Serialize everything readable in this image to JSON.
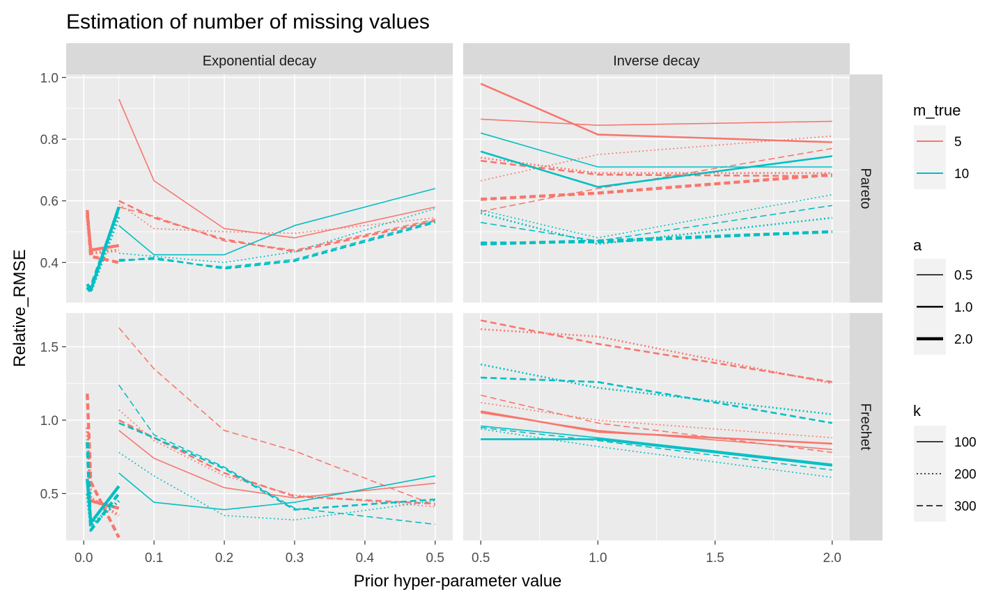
{
  "chart_data": {
    "type": "line",
    "title": "Estimation of number of missing values",
    "xlabel": "Prior hyper-parameter value",
    "ylabel": "Relative_RMSE",
    "columns": [
      {
        "label": "Exponential decay",
        "xlim": [
          -0.025,
          0.525
        ],
        "ticks": [
          0.0,
          0.1,
          0.2,
          0.3,
          0.4,
          0.5
        ],
        "tick_labels": [
          "0.0",
          "0.1",
          "0.2",
          "0.3",
          "0.4",
          "0.5"
        ]
      },
      {
        "label": "Inverse decay",
        "xlim": [
          0.425,
          2.075
        ],
        "ticks": [
          0.5,
          1.0,
          1.5,
          2.0
        ],
        "tick_labels": [
          "0.5",
          "1.0",
          "1.5",
          "2.0"
        ]
      }
    ],
    "rows": [
      {
        "label": "Pareto",
        "ylim": [
          0.27,
          1.01
        ],
        "ticks": [
          0.4,
          0.6,
          0.8,
          1.0
        ],
        "tick_labels": [
          "0.4",
          "0.6",
          "0.8",
          "1.0"
        ]
      },
      {
        "label": "Frechet",
        "ylim": [
          0.18,
          1.73
        ],
        "ticks": [
          0.5,
          1.0,
          1.5
        ],
        "tick_labels": [
          "0.5",
          "1.0",
          "1.5"
        ]
      }
    ],
    "legends": [
      {
        "title": "m_true",
        "kind": "color",
        "entries": [
          {
            "label": "5",
            "color": "#F8766D"
          },
          {
            "label": "10",
            "color": "#00BFC4"
          }
        ]
      },
      {
        "title": "a",
        "kind": "linewidth",
        "entries": [
          {
            "label": "0.5",
            "width": 1.6
          },
          {
            "label": "1.0",
            "width": 2.6
          },
          {
            "label": "2.0",
            "width": 4.4
          }
        ]
      },
      {
        "title": "k",
        "kind": "linetype",
        "entries": [
          {
            "label": "100",
            "dash": "solid"
          },
          {
            "label": "200",
            "dash": "dotted"
          },
          {
            "label": "300",
            "dash": "dashed"
          }
        ]
      }
    ],
    "series": [
      {
        "panel": [
          0,
          0
        ],
        "m_true": "5",
        "a": "0.5",
        "k": "100",
        "x": [
          0.05,
          0.1,
          0.2,
          0.3,
          0.5
        ],
        "y": [
          0.93,
          0.665,
          0.51,
          0.48,
          0.58
        ]
      },
      {
        "panel": [
          0,
          0
        ],
        "m_true": "5",
        "a": "0.5",
        "k": "200",
        "x": [
          0.05,
          0.1,
          0.2,
          0.3,
          0.5
        ],
        "y": [
          0.59,
          0.51,
          0.5,
          0.495,
          0.545
        ]
      },
      {
        "panel": [
          0,
          0
        ],
        "m_true": "5",
        "a": "0.5",
        "k": "300",
        "x": [
          0.05,
          0.1,
          0.2,
          0.3,
          0.5
        ],
        "y": [
          0.58,
          0.55,
          0.47,
          0.44,
          0.54
        ]
      },
      {
        "panel": [
          0,
          0
        ],
        "m_true": "5",
        "a": "1.0",
        "k": "300",
        "x": [
          0.05,
          0.1,
          0.2,
          0.3,
          0.5
        ],
        "y": [
          0.6,
          0.545,
          0.475,
          0.435,
          0.535
        ]
      },
      {
        "panel": [
          0,
          0
        ],
        "m_true": "10",
        "a": "0.5",
        "k": "100",
        "x": [
          0.05,
          0.1,
          0.2,
          0.3,
          0.5
        ],
        "y": [
          0.52,
          0.425,
          0.425,
          0.52,
          0.64
        ]
      },
      {
        "panel": [
          0,
          0
        ],
        "m_true": "10",
        "a": "0.5",
        "k": "200",
        "x": [
          0.05,
          0.1,
          0.2,
          0.3,
          0.5
        ],
        "y": [
          0.43,
          0.42,
          0.4,
          0.435,
          0.575
        ]
      },
      {
        "panel": [
          0,
          0
        ],
        "m_true": "10",
        "a": "0.5",
        "k": "300",
        "x": [
          0.05,
          0.1,
          0.2,
          0.3,
          0.5
        ],
        "y": [
          0.41,
          0.41,
          0.385,
          0.41,
          0.535
        ]
      },
      {
        "panel": [
          0,
          0
        ],
        "m_true": "10",
        "a": "1.0",
        "k": "300",
        "x": [
          0.05,
          0.1,
          0.2,
          0.3,
          0.5
        ],
        "y": [
          0.405,
          0.415,
          0.38,
          0.405,
          0.53
        ]
      },
      {
        "panel": [
          0,
          0
        ],
        "m_true": "5",
        "a": "2.0",
        "k": "100",
        "x": [
          0.005,
          0.01,
          0.05
        ],
        "y": [
          0.56,
          0.44,
          0.455
        ]
      },
      {
        "panel": [
          0,
          0
        ],
        "m_true": "5",
        "a": "2.0",
        "k": "200",
        "x": [
          0.005,
          0.01,
          0.05
        ],
        "y": [
          0.55,
          0.43,
          0.44
        ]
      },
      {
        "panel": [
          0,
          0
        ],
        "m_true": "5",
        "a": "2.0",
        "k": "300",
        "x": [
          0.005,
          0.01,
          0.05
        ],
        "y": [
          0.57,
          0.42,
          0.4
        ]
      },
      {
        "panel": [
          0,
          0
        ],
        "m_true": "10",
        "a": "2.0",
        "k": "100",
        "x": [
          0.005,
          0.01,
          0.05
        ],
        "y": [
          0.33,
          0.31,
          0.58
        ]
      },
      {
        "panel": [
          0,
          0
        ],
        "m_true": "10",
        "a": "2.0",
        "k": "200",
        "x": [
          0.005,
          0.01,
          0.05
        ],
        "y": [
          0.32,
          0.305,
          0.55
        ]
      },
      {
        "panel": [
          0,
          0
        ],
        "m_true": "10",
        "a": "2.0",
        "k": "300",
        "x": [
          0.005,
          0.01,
          0.05
        ],
        "y": [
          0.31,
          0.32,
          0.575
        ]
      },
      {
        "panel": [
          0,
          1
        ],
        "m_true": "5",
        "a": "0.5",
        "k": "100",
        "x": [
          0.5,
          1.0,
          2.0
        ],
        "y": [
          0.865,
          0.845,
          0.858
        ]
      },
      {
        "panel": [
          0,
          1
        ],
        "m_true": "5",
        "a": "1.0",
        "k": "100",
        "x": [
          0.5,
          1.0,
          2.0
        ],
        "y": [
          0.98,
          0.815,
          0.79
        ]
      },
      {
        "panel": [
          0,
          1
        ],
        "m_true": "5",
        "a": "0.5",
        "k": "200",
        "x": [
          0.5,
          1.0,
          2.0
        ],
        "y": [
          0.665,
          0.75,
          0.81
        ]
      },
      {
        "panel": [
          0,
          1
        ],
        "m_true": "5",
        "a": "0.5",
        "k": "300",
        "x": [
          0.5,
          1.0,
          2.0
        ],
        "y": [
          0.565,
          0.64,
          0.77
        ]
      },
      {
        "panel": [
          0,
          1
        ],
        "m_true": "5",
        "a": "1.0",
        "k": "200",
        "x": [
          0.5,
          1.0,
          2.0
        ],
        "y": [
          0.74,
          0.69,
          0.69
        ]
      },
      {
        "panel": [
          0,
          1
        ],
        "m_true": "5",
        "a": "1.0",
        "k": "300",
        "x": [
          0.5,
          1.0,
          2.0
        ],
        "y": [
          0.73,
          0.685,
          0.68
        ]
      },
      {
        "panel": [
          0,
          1
        ],
        "m_true": "5",
        "a": "2.0",
        "k": "300",
        "x": [
          0.5,
          1.0,
          2.0
        ],
        "y": [
          0.605,
          0.625,
          0.685
        ]
      },
      {
        "panel": [
          0,
          1
        ],
        "m_true": "10",
        "a": "0.5",
        "k": "100",
        "x": [
          0.5,
          1.0,
          2.0
        ],
        "y": [
          0.82,
          0.71,
          0.71
        ]
      },
      {
        "panel": [
          0,
          1
        ],
        "m_true": "10",
        "a": "1.0",
        "k": "100",
        "x": [
          0.5,
          1.0,
          2.0
        ],
        "y": [
          0.76,
          0.645,
          0.745
        ]
      },
      {
        "panel": [
          0,
          1
        ],
        "m_true": "10",
        "a": "0.5",
        "k": "200",
        "x": [
          0.5,
          1.0,
          2.0
        ],
        "y": [
          0.57,
          0.48,
          0.62
        ]
      },
      {
        "panel": [
          0,
          1
        ],
        "m_true": "10",
        "a": "0.5",
        "k": "300",
        "x": [
          0.5,
          1.0,
          2.0
        ],
        "y": [
          0.53,
          0.47,
          0.585
        ]
      },
      {
        "panel": [
          0,
          1
        ],
        "m_true": "10",
        "a": "1.0",
        "k": "200",
        "x": [
          0.5,
          1.0,
          2.0
        ],
        "y": [
          0.56,
          0.46,
          0.545
        ]
      },
      {
        "panel": [
          0,
          1
        ],
        "m_true": "10",
        "a": "1.0",
        "k": "300",
        "x": [
          0.5,
          1.0,
          2.0
        ],
        "y": [
          0.465,
          0.465,
          0.5
        ]
      },
      {
        "panel": [
          0,
          1
        ],
        "m_true": "10",
        "a": "2.0",
        "k": "300",
        "x": [
          0.5,
          1.0,
          2.0
        ],
        "y": [
          0.46,
          0.47,
          0.5
        ]
      },
      {
        "panel": [
          1,
          0
        ],
        "m_true": "5",
        "a": "0.5",
        "k": "100",
        "x": [
          0.05,
          0.1,
          0.2,
          0.3,
          0.5
        ],
        "y": [
          0.93,
          0.74,
          0.54,
          0.47,
          0.57
        ]
      },
      {
        "panel": [
          1,
          0
        ],
        "m_true": "5",
        "a": "0.5",
        "k": "200",
        "x": [
          0.05,
          0.1,
          0.2,
          0.3,
          0.5
        ],
        "y": [
          1.07,
          0.86,
          0.62,
          0.49,
          0.41
        ]
      },
      {
        "panel": [
          1,
          0
        ],
        "m_true": "5",
        "a": "0.5",
        "k": "300",
        "x": [
          0.05,
          0.1,
          0.2,
          0.3,
          0.5
        ],
        "y": [
          1.63,
          1.35,
          0.93,
          0.79,
          0.42
        ]
      },
      {
        "panel": [
          1,
          0
        ],
        "m_true": "5",
        "a": "1.0",
        "k": "300",
        "x": [
          0.05,
          0.1,
          0.2,
          0.3,
          0.5
        ],
        "y": [
          1.0,
          0.88,
          0.64,
          0.48,
          0.43
        ]
      },
      {
        "panel": [
          1,
          0
        ],
        "m_true": "10",
        "a": "0.5",
        "k": "100",
        "x": [
          0.05,
          0.1,
          0.2,
          0.3,
          0.5
        ],
        "y": [
          0.64,
          0.44,
          0.39,
          0.44,
          0.62
        ]
      },
      {
        "panel": [
          1,
          0
        ],
        "m_true": "10",
        "a": "0.5",
        "k": "200",
        "x": [
          0.05,
          0.1,
          0.2,
          0.3,
          0.5
        ],
        "y": [
          0.78,
          0.62,
          0.35,
          0.32,
          0.45
        ]
      },
      {
        "panel": [
          1,
          0
        ],
        "m_true": "10",
        "a": "0.5",
        "k": "300",
        "x": [
          0.05,
          0.1,
          0.2,
          0.3,
          0.5
        ],
        "y": [
          1.24,
          0.9,
          0.68,
          0.4,
          0.29
        ]
      },
      {
        "panel": [
          1,
          0
        ],
        "m_true": "10",
        "a": "1.0",
        "k": "300",
        "x": [
          0.05,
          0.1,
          0.2,
          0.3,
          0.5
        ],
        "y": [
          0.98,
          0.88,
          0.67,
          0.39,
          0.46
        ]
      },
      {
        "panel": [
          1,
          0
        ],
        "m_true": "5",
        "a": "2.0",
        "k": "100",
        "x": [
          0.005,
          0.01,
          0.05
        ],
        "y": [
          0.5,
          0.45,
          0.4
        ]
      },
      {
        "panel": [
          1,
          0
        ],
        "m_true": "5",
        "a": "2.0",
        "k": "200",
        "x": [
          0.005,
          0.01,
          0.05
        ],
        "y": [
          0.95,
          0.47,
          0.35
        ]
      },
      {
        "panel": [
          1,
          0
        ],
        "m_true": "5",
        "a": "2.0",
        "k": "300",
        "x": [
          0.005,
          0.01,
          0.05
        ],
        "y": [
          1.18,
          0.58,
          0.2
        ]
      },
      {
        "panel": [
          1,
          0
        ],
        "m_true": "10",
        "a": "2.0",
        "k": "100",
        "x": [
          0.005,
          0.01,
          0.05
        ],
        "y": [
          0.6,
          0.3,
          0.55
        ]
      },
      {
        "panel": [
          1,
          0
        ],
        "m_true": "10",
        "a": "2.0",
        "k": "200",
        "x": [
          0.005,
          0.01,
          0.05
        ],
        "y": [
          0.5,
          0.28,
          0.45
        ]
      },
      {
        "panel": [
          1,
          0
        ],
        "m_true": "10",
        "a": "2.0",
        "k": "300",
        "x": [
          0.005,
          0.01,
          0.05
        ],
        "y": [
          0.85,
          0.25,
          0.5
        ]
      },
      {
        "panel": [
          1,
          1
        ],
        "m_true": "5",
        "a": "0.5",
        "k": "100",
        "x": [
          0.5,
          1.0,
          2.0
        ],
        "y": [
          1.05,
          0.93,
          0.8
        ]
      },
      {
        "panel": [
          1,
          1
        ],
        "m_true": "5",
        "a": "1.0",
        "k": "100",
        "x": [
          0.5,
          1.0,
          2.0
        ],
        "y": [
          1.06,
          0.92,
          0.84
        ]
      },
      {
        "panel": [
          1,
          1
        ],
        "m_true": "5",
        "a": "0.5",
        "k": "200",
        "x": [
          0.5,
          1.0,
          2.0
        ],
        "y": [
          1.12,
          1.0,
          0.88
        ]
      },
      {
        "panel": [
          1,
          1
        ],
        "m_true": "5",
        "a": "0.5",
        "k": "300",
        "x": [
          0.5,
          1.0,
          2.0
        ],
        "y": [
          1.17,
          0.98,
          0.78
        ]
      },
      {
        "panel": [
          1,
          1
        ],
        "m_true": "5",
        "a": "1.0",
        "k": "200",
        "x": [
          0.5,
          1.0,
          2.0
        ],
        "y": [
          1.62,
          1.57,
          1.25
        ]
      },
      {
        "panel": [
          1,
          1
        ],
        "m_true": "5",
        "a": "1.0",
        "k": "300",
        "x": [
          0.5,
          1.0,
          2.0
        ],
        "y": [
          1.68,
          1.52,
          1.26
        ]
      },
      {
        "panel": [
          1,
          1
        ],
        "m_true": "10",
        "a": "0.5",
        "k": "100",
        "x": [
          0.5,
          1.0,
          2.0
        ],
        "y": [
          0.96,
          0.88,
          0.7
        ]
      },
      {
        "panel": [
          1,
          1
        ],
        "m_true": "10",
        "a": "1.0",
        "k": "100",
        "x": [
          0.5,
          1.0,
          2.0
        ],
        "y": [
          0.87,
          0.87,
          0.69
        ]
      },
      {
        "panel": [
          1,
          1
        ],
        "m_true": "10",
        "a": "0.5",
        "k": "200",
        "x": [
          0.5,
          1.0,
          2.0
        ],
        "y": [
          0.94,
          0.82,
          0.61
        ]
      },
      {
        "panel": [
          1,
          1
        ],
        "m_true": "10",
        "a": "0.5",
        "k": "300",
        "x": [
          0.5,
          1.0,
          2.0
        ],
        "y": [
          0.95,
          0.86,
          0.66
        ]
      },
      {
        "panel": [
          1,
          1
        ],
        "m_true": "10",
        "a": "1.0",
        "k": "200",
        "x": [
          0.5,
          1.0,
          2.0
        ],
        "y": [
          1.38,
          1.22,
          1.04
        ]
      },
      {
        "panel": [
          1,
          1
        ],
        "m_true": "10",
        "a": "1.0",
        "k": "300",
        "x": [
          0.5,
          1.0,
          2.0
        ],
        "y": [
          1.29,
          1.26,
          0.98
        ]
      }
    ]
  }
}
